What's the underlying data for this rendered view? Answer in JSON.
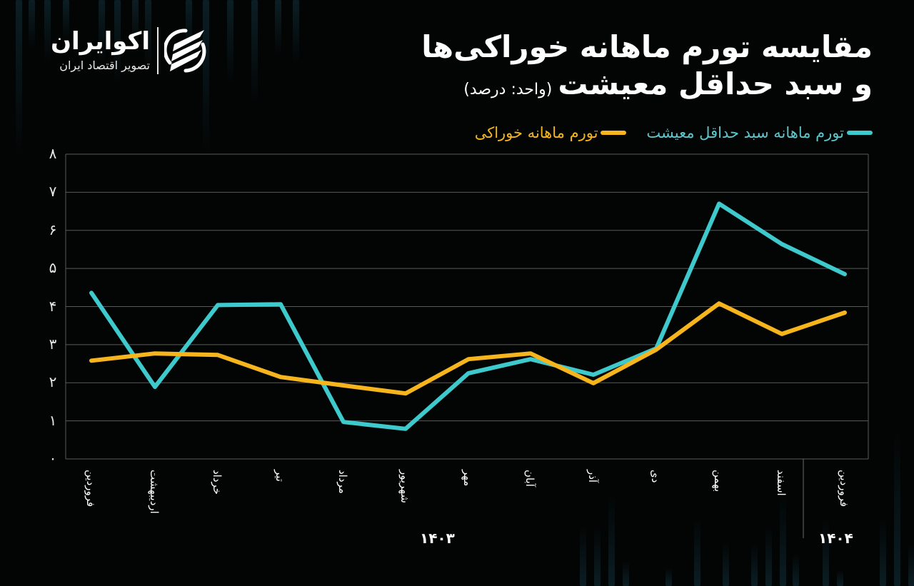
{
  "logo": {
    "name": "اکوایران",
    "tagline": "تصویر اقتصاد ایران"
  },
  "title": {
    "line1": "مقایسه تورم ماهانه خوراکی‌ها",
    "line2": "و سبد حداقل معیشت",
    "unit": "(واحد: درصد)"
  },
  "legend": [
    {
      "label": "تورم ماهانه سبد حداقل معیشت",
      "color": "#3ec9cc"
    },
    {
      "label": "تورم ماهانه خوراکی",
      "color": "#f6b51d"
    }
  ],
  "yaxis": {
    "ticks": [
      "۸",
      "۷",
      "۶",
      "۵",
      "۴",
      "۳",
      "۲",
      "۱",
      "۰"
    ]
  },
  "xaxis": {
    "months": [
      "فروردین",
      "اردیبهشت",
      "خرداد",
      "تیر",
      "مرداد",
      "شهریور",
      "مهر",
      "آبان",
      "آذر",
      "دی",
      "بهمن",
      "اسفند",
      "فروردین"
    ],
    "years": [
      {
        "label": "۱۴۰۳"
      },
      {
        "label": "۱۴۰۴"
      }
    ]
  },
  "chart_data": {
    "type": "line",
    "title": "مقایسه تورم ماهانه خوراکی‌ها و سبد حداقل معیشت",
    "subtitle": "(واحد: درصد)",
    "xlabel": "",
    "ylabel": "",
    "ylim": [
      0,
      8
    ],
    "yticks": [
      0,
      1,
      2,
      3,
      4,
      5,
      6,
      7,
      8
    ],
    "grid": true,
    "legend_position": "top-right",
    "categories": [
      "فروردین ۱۴۰۳",
      "اردیبهشت ۱۴۰۳",
      "خرداد ۱۴۰۳",
      "تیر ۱۴۰۳",
      "مرداد ۱۴۰۳",
      "شهریور ۱۴۰۳",
      "مهر ۱۴۰۳",
      "آبان ۱۴۰۳",
      "آذر ۱۴۰۳",
      "دی ۱۴۰۳",
      "بهمن ۱۴۰۳",
      "اسفند ۱۴۰۳",
      "فروردین ۱۴۰۴"
    ],
    "series": [
      {
        "name": "تورم ماهانه سبد حداقل معیشت",
        "color": "#3ec9cc",
        "values": [
          4.36,
          1.89,
          4.04,
          4.06,
          0.97,
          0.79,
          2.25,
          2.62,
          2.21,
          2.9,
          6.7,
          5.64,
          4.85
        ]
      },
      {
        "name": "تورم ماهانه خوراکی",
        "color": "#f6b51d",
        "values": [
          2.58,
          2.77,
          2.73,
          2.15,
          1.93,
          1.72,
          2.62,
          2.77,
          1.99,
          2.87,
          4.08,
          3.28,
          3.84
        ]
      }
    ]
  }
}
